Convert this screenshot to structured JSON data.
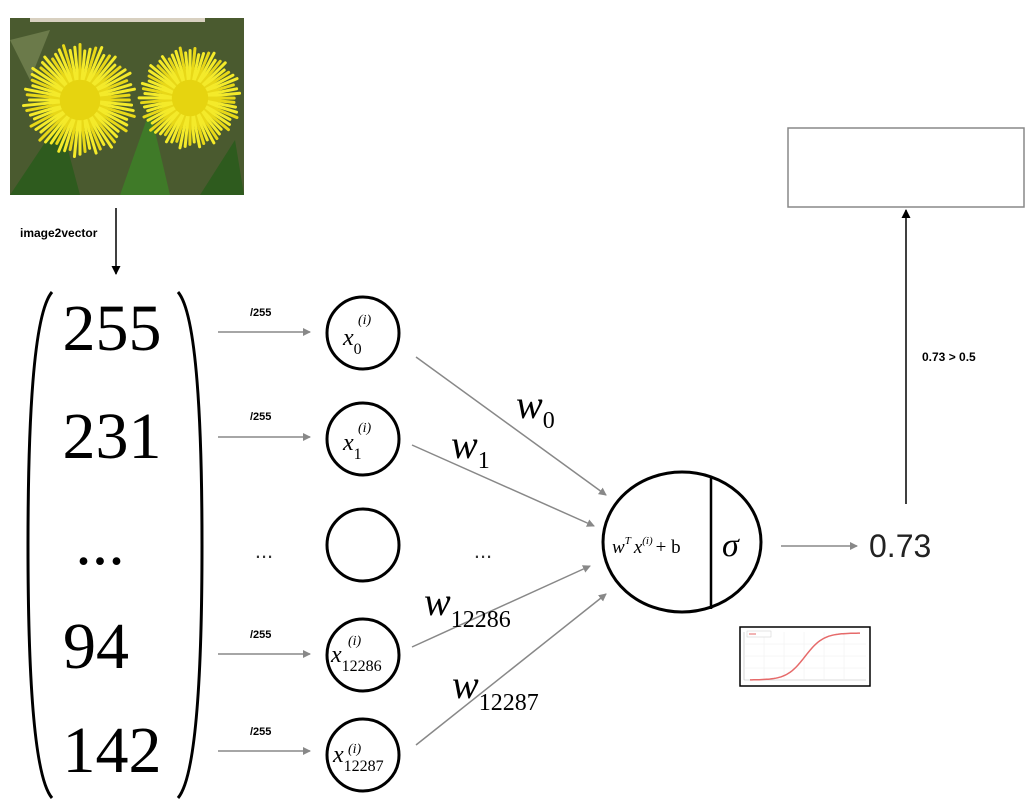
{
  "image": {
    "alt": "photo of two yellow dandelion flowers",
    "conversion_label": "image2vector"
  },
  "vector": {
    "values": [
      "255",
      "231",
      "...",
      "94",
      "142"
    ]
  },
  "normalization": {
    "labels": [
      "/255",
      "/255",
      "",
      "/255",
      "/255"
    ],
    "middle_dots": "..."
  },
  "inputs": [
    {
      "base": "x",
      "subscript": "0",
      "superscript": "(i)"
    },
    {
      "base": "x",
      "subscript": "1",
      "superscript": "(i)"
    },
    {
      "base": "",
      "subscript": "",
      "superscript": ""
    },
    {
      "base": "x",
      "subscript": "12286",
      "superscript": "(i)"
    },
    {
      "base": "x",
      "subscript": "12287",
      "superscript": "(i)"
    }
  ],
  "weights": [
    {
      "base": "w",
      "subscript": "0"
    },
    {
      "base": "w",
      "subscript": "1"
    },
    {
      "base": "",
      "subscript": ""
    },
    {
      "base": "w",
      "subscript": "12286"
    },
    {
      "base": "w",
      "subscript": "12287"
    }
  ],
  "middle_dots": "...",
  "neuron": {
    "formula_w": "w",
    "formula_T": "T",
    "formula_x": "x",
    "formula_i": "(i)",
    "formula_rest": "+ b",
    "activation": "σ"
  },
  "output": {
    "value": "0.73",
    "threshold_label": "0.73 > 0.5",
    "result_box_text": ""
  },
  "colors": {
    "arrow_gray": "#888888",
    "flower_yellow": "#f2e51f",
    "leaf_green": "#2e5b1e",
    "sigmoid_red": "#e66a6a"
  }
}
